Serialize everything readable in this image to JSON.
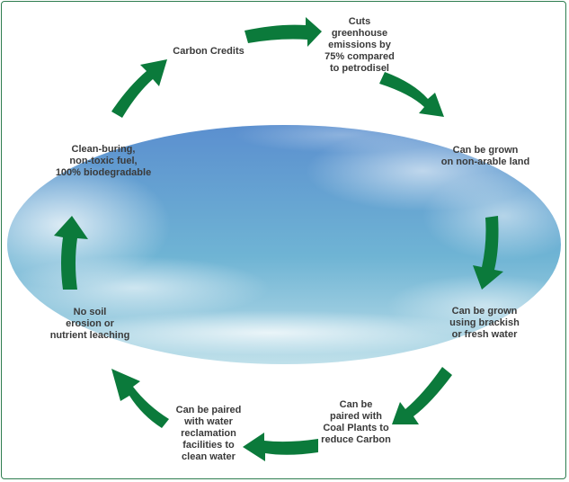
{
  "colors": {
    "arrow": "#0b7a3b",
    "frame": "#2e7d4f",
    "sky_top": "#5b8fcf",
    "sky_mid": "#6fb4d4",
    "sky_bottom": "#bfe0ea",
    "text": "#3a3a3a"
  },
  "labels": {
    "carbon_credits": "Carbon Credits",
    "cuts_emissions": "Cuts\ngreenhouse\nemissions by\n75% compared\nto petrodisel",
    "non_arable": "Can be grown\non non-arable land",
    "brackish_water": "Can be grown\nusing brackish\nor fresh water",
    "coal_plants": "Can be\npaired with\nCoal Plants to\nreduce Carbon",
    "water_reclamation": "Can be paired\nwith water\nreclamation\nfacilities to\nclean water",
    "no_soil_erosion": "No soil\nerosion or\nnutrient leaching",
    "clean_fuel": "Clean-buring,\nnon-toxic fuel,\n100% biodegradable"
  },
  "arrow_icons": [
    "arrow-right-icon",
    "arrow-down-icon",
    "arrow-left-icon",
    "arrow-up-icon"
  ]
}
